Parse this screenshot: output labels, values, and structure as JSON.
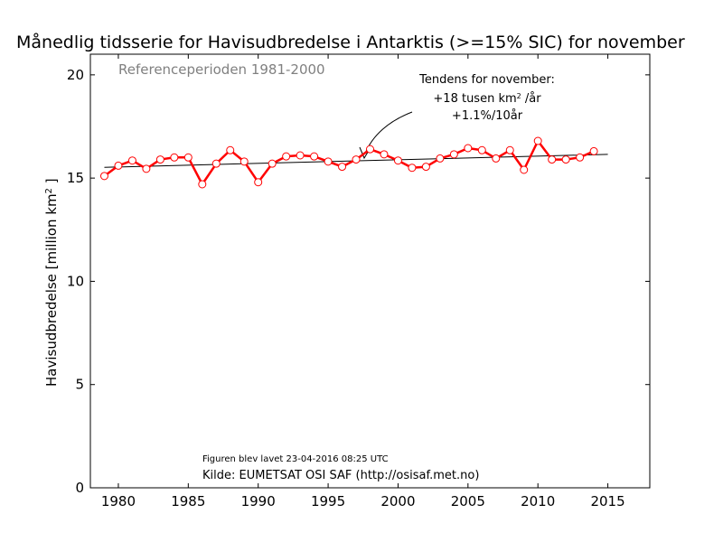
{
  "chart_data": {
    "type": "line",
    "title": "Månedlig tidsserie for Havisudbredelse i Antarktis (>=15% SIC) for november",
    "xlabel": "",
    "ylabel_main": "Havisudbredelse [million km",
    "ylabel_sup": "2",
    "ylabel_end": " ]",
    "xlim": [
      1978,
      2018
    ],
    "ylim": [
      0,
      21
    ],
    "xticks": [
      1980,
      1985,
      1990,
      1995,
      2000,
      2005,
      2010,
      2015
    ],
    "yticks": [
      0,
      5,
      10,
      15,
      20
    ],
    "grid": false,
    "series": [
      {
        "color": "#ff0000",
        "marker": "circle",
        "x": [
          1979,
          1980,
          1981,
          1982,
          1983,
          1984,
          1985,
          1986,
          1987,
          1988,
          1989,
          1990,
          1991,
          1992,
          1993,
          1994,
          1995,
          1996,
          1997,
          1998,
          1999,
          2000,
          2001,
          2002,
          2003,
          2004,
          2005,
          2006,
          2007,
          2008,
          2009,
          2010,
          2011,
          2012,
          2013,
          2014,
          2015
        ],
        "values": [
          15.1,
          15.6,
          15.85,
          15.45,
          15.9,
          16.0,
          16.0,
          14.7,
          15.7,
          16.35,
          15.8,
          14.8,
          15.7,
          16.05,
          16.1,
          16.05,
          15.8,
          15.55,
          15.9,
          16.4,
          16.15,
          15.85,
          15.5,
          15.55,
          15.95,
          16.15,
          16.45,
          16.35,
          15.95,
          16.35,
          15.4,
          16.8,
          15.9,
          15.9,
          16.0,
          16.3,
          null
        ]
      }
    ],
    "trend_line": {
      "color": "#000000",
      "x": [
        1979,
        2015
      ],
      "values": [
        15.52,
        16.15
      ]
    },
    "annotations": {
      "reference": "Referenceperioden 1981-2000",
      "trend_title": "Tendens for november:",
      "trend_rate_pre": "+18 tusen km",
      "trend_rate_sup": "2",
      "trend_rate_post": " /år",
      "trend_pct": "+1.1%/10år",
      "created": "Figuren blev lavet 23-04-2016 08:25 UTC",
      "source": "Kilde: EUMETSAT OSI SAF (http://osisaf.met.no)"
    }
  }
}
